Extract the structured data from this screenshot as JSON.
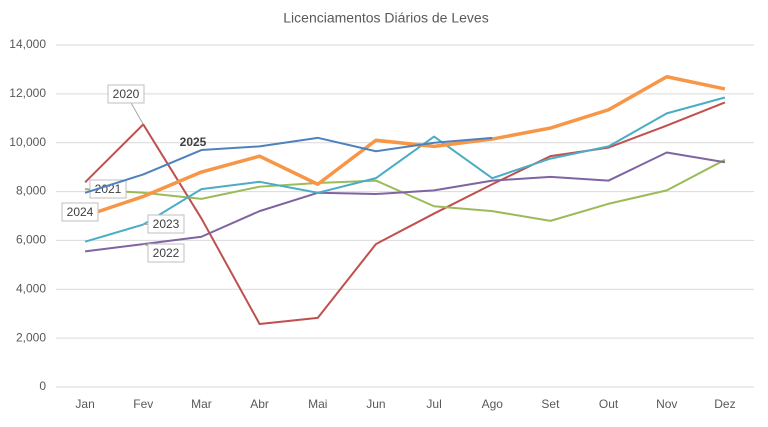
{
  "chart_data": {
    "type": "line",
    "title": "Licenciamentos Diários de Leves",
    "categories": [
      "Jan",
      "Fev",
      "Mar",
      "Abr",
      "Mai",
      "Jun",
      "Jul",
      "Ago",
      "Set",
      "Out",
      "Nov",
      "Dez"
    ],
    "series": [
      {
        "name": "2020",
        "color": "#c0504d",
        "values": [
          8380,
          10750,
          6900,
          2580,
          2830,
          5850,
          7100,
          8300,
          9450,
          9800,
          10700,
          11650
        ]
      },
      {
        "name": "2021",
        "color": "#9bbb59",
        "values": [
          8100,
          7950,
          7700,
          8200,
          8350,
          8450,
          7400,
          7200,
          6800,
          7500,
          8050,
          9300
        ]
      },
      {
        "name": "2022",
        "color": "#8064a2",
        "values": [
          5550,
          5850,
          6150,
          7200,
          7950,
          7900,
          8050,
          8450,
          8600,
          8450,
          9600,
          9200
        ]
      },
      {
        "name": "2023",
        "color": "#4bacc6",
        "values": [
          5950,
          6650,
          8100,
          8400,
          7950,
          8550,
          10250,
          8550,
          9350,
          9850,
          11200,
          11850
        ]
      },
      {
        "name": "2024",
        "color": "#f79646",
        "values": [
          7000,
          7800,
          8800,
          9450,
          8300,
          10100,
          9850,
          10150,
          10600,
          11350,
          12700,
          12200
        ]
      },
      {
        "name": "2025",
        "color": "#4f81bd",
        "values": [
          7950,
          8700,
          9700,
          9850,
          10200,
          9650,
          10000,
          10200,
          null,
          null,
          null,
          null
        ]
      }
    ],
    "ylim": [
      0,
      14000
    ],
    "yticks": [
      0,
      {
        "value": 2000,
        "label": "2,000"
      },
      {
        "value": 4000,
        "label": "4,000"
      },
      {
        "value": 6000,
        "label": "6,000"
      },
      {
        "value": 8000,
        "label": "8,000"
      },
      {
        "value": 10000,
        "label": "10,000"
      },
      {
        "value": 12000,
        "label": "12,000"
      },
      {
        "value": 14000,
        "label": "14,000"
      }
    ],
    "grid": true
  }
}
